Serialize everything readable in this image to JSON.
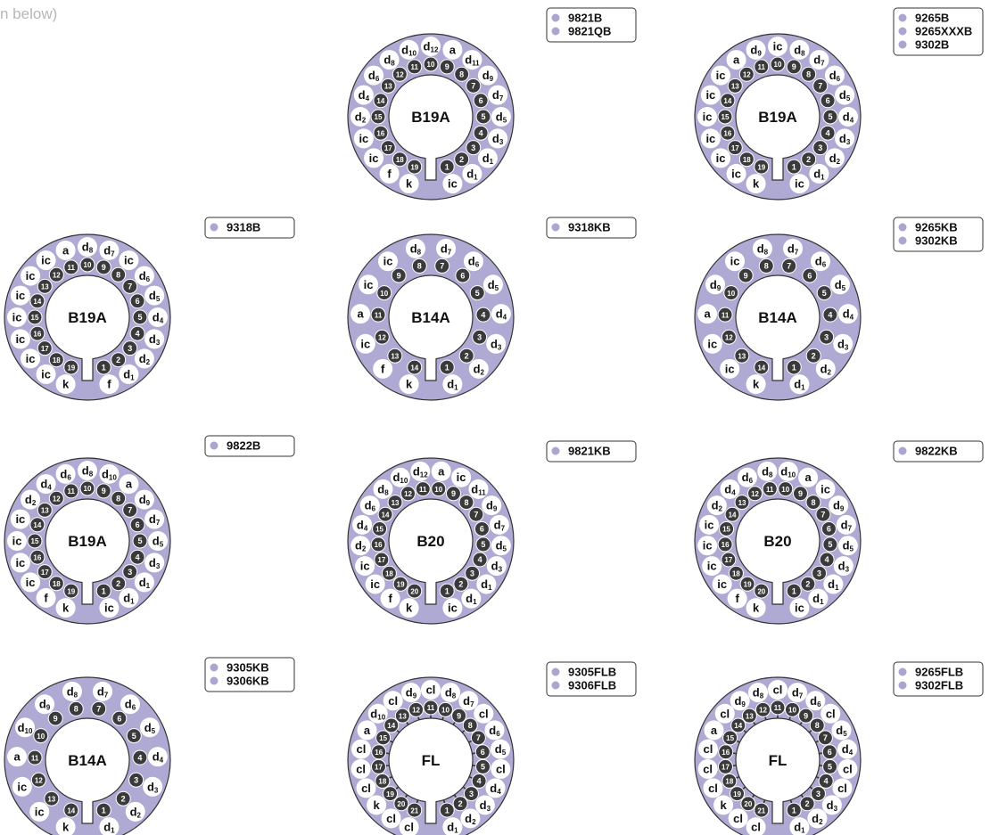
{
  "caption": "n below)",
  "colors": {
    "ring": "#aeaad4",
    "outline": "#333333",
    "pin_fill": "#3a3a3a",
    "bubble_fill": "#ffffff",
    "text": "#111111",
    "legend_dot": "#aaa6d0"
  },
  "bases": [
    {
      "base": "B19A",
      "types": [
        "9821B",
        "9821QB"
      ],
      "pins": 19,
      "labels": [
        "ic",
        "d1",
        "d1",
        "d3",
        "d5",
        "d7",
        "d9",
        "d11",
        "a",
        "d12",
        "d10",
        "d8",
        "d6",
        "d4",
        "d2",
        "ic",
        "ic",
        "f",
        "k"
      ]
    },
    {
      "base": "B19A",
      "types": [
        "9265B",
        "9265XXXB",
        "9302B"
      ],
      "pins": 19,
      "labels": [
        "ic",
        "d1",
        "d2",
        "d3",
        "d4",
        "d5",
        "d6",
        "d7",
        "d8",
        "ic",
        "d9",
        "a",
        "ic",
        "ic",
        "ic",
        "ic",
        "ic",
        "ic",
        "k"
      ]
    },
    {
      "base": "B19A",
      "types": [
        "9318B"
      ],
      "pins": 19,
      "labels": [
        "f",
        "d1",
        "d2",
        "d3",
        "d4",
        "d5",
        "d6",
        "ic",
        "d7",
        "d8",
        "a",
        "ic",
        "ic",
        "ic",
        "ic",
        "ic",
        "ic",
        "ic",
        "k"
      ]
    },
    {
      "base": "B14A",
      "types": [
        "9318KB"
      ],
      "pins": 14,
      "labels": [
        "d1",
        "d2",
        "d3",
        "d4",
        "d5",
        "d6",
        "d7",
        "d8",
        "ic",
        "ic",
        "a",
        "ic",
        "f",
        "k"
      ]
    },
    {
      "base": "B14A",
      "types": [
        "9265KB",
        "9302KB"
      ],
      "pins": 14,
      "labels": [
        "d1",
        "d2",
        "d3",
        "d4",
        "d5",
        "d6",
        "d7",
        "d8",
        "ic",
        "d9",
        "a",
        "ic",
        "ic",
        "k"
      ]
    },
    {
      "base": "B19A",
      "types": [
        "9822B"
      ],
      "pins": 19,
      "labels": [
        "ic",
        "d1",
        "d1",
        "d3",
        "d5",
        "d7",
        "d9",
        "a",
        "d10",
        "d8",
        "d6",
        "d4",
        "d2",
        "ic",
        "ic",
        "ic",
        "ic",
        "f",
        "k"
      ]
    },
    {
      "base": "B20",
      "types": [
        "9821KB"
      ],
      "pins": 20,
      "labels": [
        "ic",
        "d1",
        "d1",
        "d3",
        "d5",
        "d7",
        "d9",
        "d11",
        "ic",
        "a",
        "d12",
        "d10",
        "d8",
        "d6",
        "d4",
        "d2",
        "ic",
        "ic",
        "f",
        "k"
      ]
    },
    {
      "base": "B20",
      "types": [
        "9822KB"
      ],
      "pins": 20,
      "labels": [
        "ic",
        "d1",
        "d1",
        "d3",
        "d5",
        "d7",
        "d9",
        "ic",
        "a",
        "d10",
        "d8",
        "d6",
        "d4",
        "d2",
        "ic",
        "ic",
        "ic",
        "ic",
        "f",
        "k"
      ]
    },
    {
      "base": "B14A",
      "types": [
        "9305KB",
        "9306KB"
      ],
      "pins": 14,
      "labels": [
        "d1",
        "d2",
        "d3",
        "d4",
        "d5",
        "d6",
        "d7",
        "d8",
        "d9",
        "d10",
        "a",
        "ic",
        "ic",
        "k"
      ]
    },
    {
      "base": "FL",
      "types": [
        "9305FLB",
        "9306FLB"
      ],
      "pins": 21,
      "labels": [
        "d1",
        "d2",
        "d3",
        "d4",
        "cl",
        "d5",
        "d6",
        "cl",
        "d7",
        "d8",
        "cl",
        "d9",
        "cl",
        "d10",
        "a",
        "cl",
        "cl",
        "cl",
        "k",
        "cl",
        "cl"
      ]
    },
    {
      "base": "FL",
      "types": [
        "9265FLB",
        "9302FLB"
      ],
      "pins": 21,
      "labels": [
        "d1",
        "d2",
        "d3",
        "cl",
        "cl",
        "d4",
        "d5",
        "cl",
        "d6",
        "d7",
        "cl",
        "d8",
        "d9",
        "cl",
        "a",
        "cl",
        "cl",
        "cl",
        "k",
        "cl",
        "cl"
      ]
    }
  ]
}
